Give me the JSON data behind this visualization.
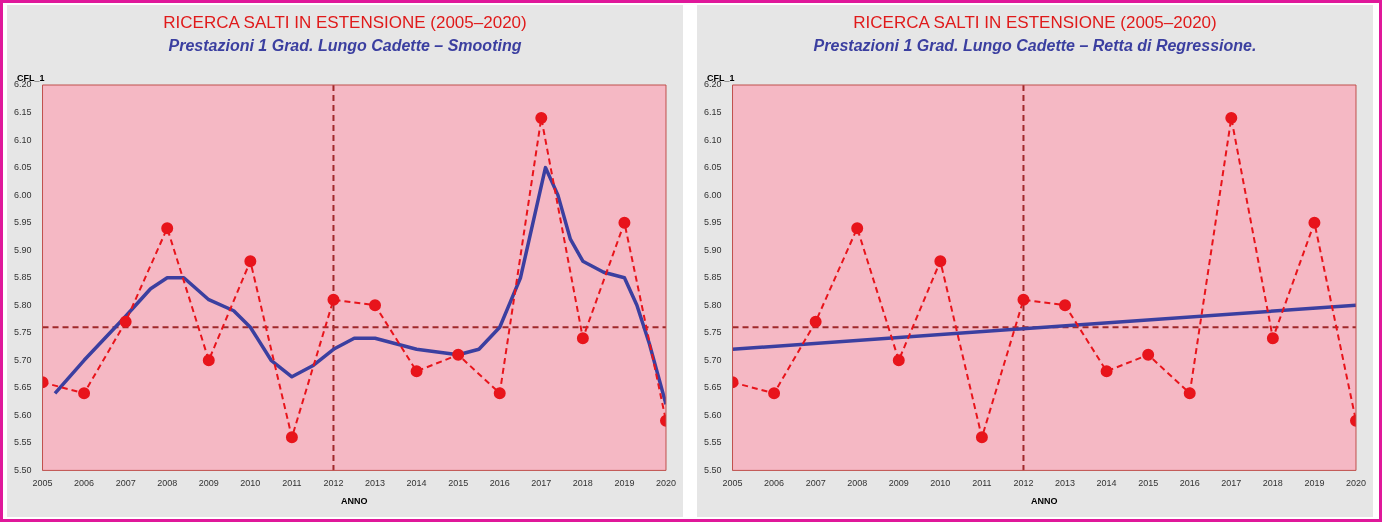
{
  "chart_data": [
    {
      "type": "line",
      "title": "RICERCA SALTI IN  ESTENSIONE (2005–2020)",
      "subtitle": "Prestazioni 1 Grad. Lungo Cadette – Smooting",
      "xlabel": "ANNO",
      "ylabel": "CFL_1",
      "x": [
        2005,
        2006,
        2007,
        2008,
        2009,
        2010,
        2011,
        2012,
        2013,
        2014,
        2015,
        2016,
        2017,
        2018,
        2019,
        2020
      ],
      "series": [
        {
          "color": "#e8141b",
          "marker": "circle",
          "line_style": "dashed",
          "values": [
            5.66,
            5.64,
            5.77,
            5.94,
            5.7,
            5.88,
            5.56,
            5.81,
            5.8,
            5.68,
            5.71,
            5.64,
            6.14,
            5.74,
            5.95,
            5.59
          ]
        },
        {
          "color": "#3b3fa0",
          "marker": "none",
          "line_style": "solid",
          "x": [
            2005.3,
            2006,
            2007,
            2007.6,
            2008,
            2008.4,
            2009,
            2009.6,
            2010,
            2010.5,
            2011,
            2011.5,
            2012,
            2012.5,
            2013,
            2013.5,
            2014,
            2015,
            2015.5,
            2016,
            2016.5,
            2016.8,
            2017.1,
            2017.4,
            2017.7,
            2018,
            2018.5,
            2019,
            2019.3,
            2019.6,
            2020
          ],
          "values": [
            5.64,
            5.7,
            5.78,
            5.83,
            5.85,
            5.85,
            5.81,
            5.79,
            5.76,
            5.7,
            5.67,
            5.69,
            5.72,
            5.74,
            5.74,
            5.73,
            5.72,
            5.71,
            5.72,
            5.76,
            5.85,
            5.95,
            6.05,
            6.0,
            5.92,
            5.88,
            5.86,
            5.85,
            5.8,
            5.73,
            5.62
          ]
        }
      ],
      "xlim": [
        2005,
        2020
      ],
      "xticks": [
        2005,
        2006,
        2007,
        2008,
        2009,
        2010,
        2011,
        2012,
        2013,
        2014,
        2015,
        2016,
        2017,
        2018,
        2019,
        2020
      ],
      "ylim": [
        5.5,
        6.2
      ],
      "yticks": [
        {
          "value": 5.5,
          "label": "5.50"
        },
        {
          "value": 5.55,
          "label": "5.55"
        },
        {
          "value": 5.6,
          "label": "5.60"
        },
        {
          "value": 5.65,
          "label": "5.65"
        },
        {
          "value": 5.7,
          "label": "5.70"
        },
        {
          "value": 5.75,
          "label": "5.75"
        },
        {
          "value": 5.8,
          "label": "5.80"
        },
        {
          "value": 5.85,
          "label": "5.85"
        },
        {
          "value": 5.9,
          "label": "5.90"
        },
        {
          "value": 5.95,
          "label": "5.95"
        },
        {
          "value": 6.0,
          "label": "6.00"
        },
        {
          "value": 6.05,
          "label": "6.05"
        },
        {
          "value": 6.1,
          "label": "6.10"
        },
        {
          "value": 6.15,
          "label": "6.15"
        },
        {
          "value": 6.2,
          "label": "6.20"
        }
      ],
      "ref_lines": [
        {
          "axis": "x",
          "value": 2012,
          "color": "#a0282a",
          "line_style": "dashed"
        },
        {
          "axis": "y",
          "value": 5.76,
          "color": "#a0282a",
          "line_style": "dashed"
        }
      ],
      "grid": false,
      "legend": false
    },
    {
      "type": "line",
      "title": "RICERCA SALTI IN  ESTENSIONE (2005–2020)",
      "subtitle": "Prestazioni 1 Grad. Lungo Cadette – Retta di Regressione.",
      "xlabel": "ANNO",
      "ylabel": "CFL_1",
      "x": [
        2005,
        2006,
        2007,
        2008,
        2009,
        2010,
        2011,
        2012,
        2013,
        2014,
        2015,
        2016,
        2017,
        2018,
        2019,
        2020
      ],
      "series": [
        {
          "color": "#e8141b",
          "marker": "circle",
          "line_style": "dashed",
          "values": [
            5.66,
            5.64,
            5.77,
            5.94,
            5.7,
            5.88,
            5.56,
            5.81,
            5.8,
            5.68,
            5.71,
            5.64,
            6.14,
            5.74,
            5.95,
            5.59
          ]
        },
        {
          "color": "#3b3fa0",
          "marker": "none",
          "line_style": "solid",
          "x": [
            2005,
            2020
          ],
          "values": [
            5.72,
            5.8
          ]
        }
      ],
      "xlim": [
        2005,
        2020
      ],
      "xticks": [
        2005,
        2006,
        2007,
        2008,
        2009,
        2010,
        2011,
        2012,
        2013,
        2014,
        2015,
        2016,
        2017,
        2018,
        2019,
        2020
      ],
      "ylim": [
        5.5,
        6.2
      ],
      "yticks": [
        {
          "value": 5.5,
          "label": "5.50"
        },
        {
          "value": 5.55,
          "label": "5.55"
        },
        {
          "value": 5.6,
          "label": "5.60"
        },
        {
          "value": 5.65,
          "label": "5.65"
        },
        {
          "value": 5.7,
          "label": "5.70"
        },
        {
          "value": 5.75,
          "label": "5.75"
        },
        {
          "value": 5.8,
          "label": "5.80"
        },
        {
          "value": 5.85,
          "label": "5.85"
        },
        {
          "value": 5.9,
          "label": "5.90"
        },
        {
          "value": 5.95,
          "label": "5.95"
        },
        {
          "value": 6.0,
          "label": "6.00"
        },
        {
          "value": 6.05,
          "label": "6.05"
        },
        {
          "value": 6.1,
          "label": "6.10"
        },
        {
          "value": 6.15,
          "label": "6.15"
        },
        {
          "value": 6.2,
          "label": "6.20"
        }
      ],
      "ref_lines": [
        {
          "axis": "x",
          "value": 2012,
          "color": "#a0282a",
          "line_style": "dashed"
        },
        {
          "axis": "y",
          "value": 5.76,
          "color": "#a0282a",
          "line_style": "dashed"
        }
      ],
      "grid": false,
      "legend": false
    }
  ]
}
